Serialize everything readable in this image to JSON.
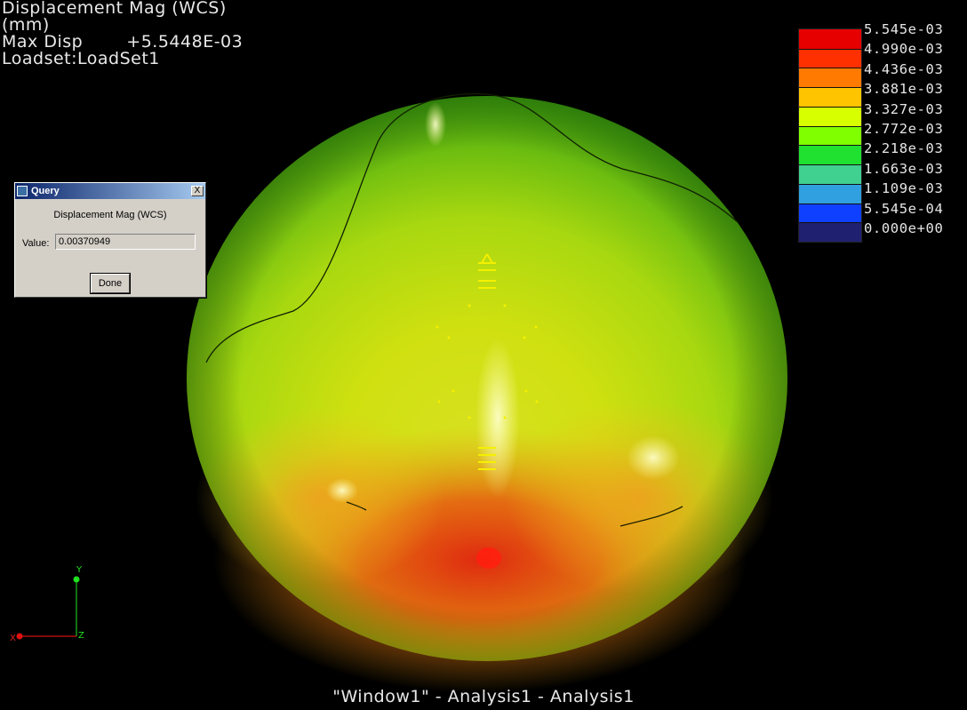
{
  "viewport": {
    "result_title": "Displacement Mag (WCS)",
    "units": "(mm)",
    "max_disp_label": "Max Disp",
    "max_disp_value": "+5.5448E-03",
    "loadset": "Loadset:LoadSet1"
  },
  "legend": {
    "labels": [
      "5.545e-03",
      "4.990e-03",
      "4.436e-03",
      "3.881e-03",
      "3.327e-03",
      "2.772e-03",
      "2.218e-03",
      "1.663e-03",
      "1.109e-03",
      "5.545e-04",
      "0.000e+00"
    ],
    "colors": [
      "#e60000",
      "#ff3000",
      "#ff7a00",
      "#ffc400",
      "#d8ff00",
      "#80ff00",
      "#20e030",
      "#40d090",
      "#30a0e0",
      "#1040ff",
      "#202070"
    ]
  },
  "axes": {
    "x": "X",
    "y": "Y",
    "z": "Z"
  },
  "query_dialog": {
    "title": "Query",
    "close_label": "X",
    "heading": "Displacement Mag (WCS)",
    "value_label": "Value:",
    "value": "0.00370949",
    "done_label": "Done"
  },
  "footer": {
    "window_title": "\"Window1\" - Analysis1 - Analysis1"
  }
}
